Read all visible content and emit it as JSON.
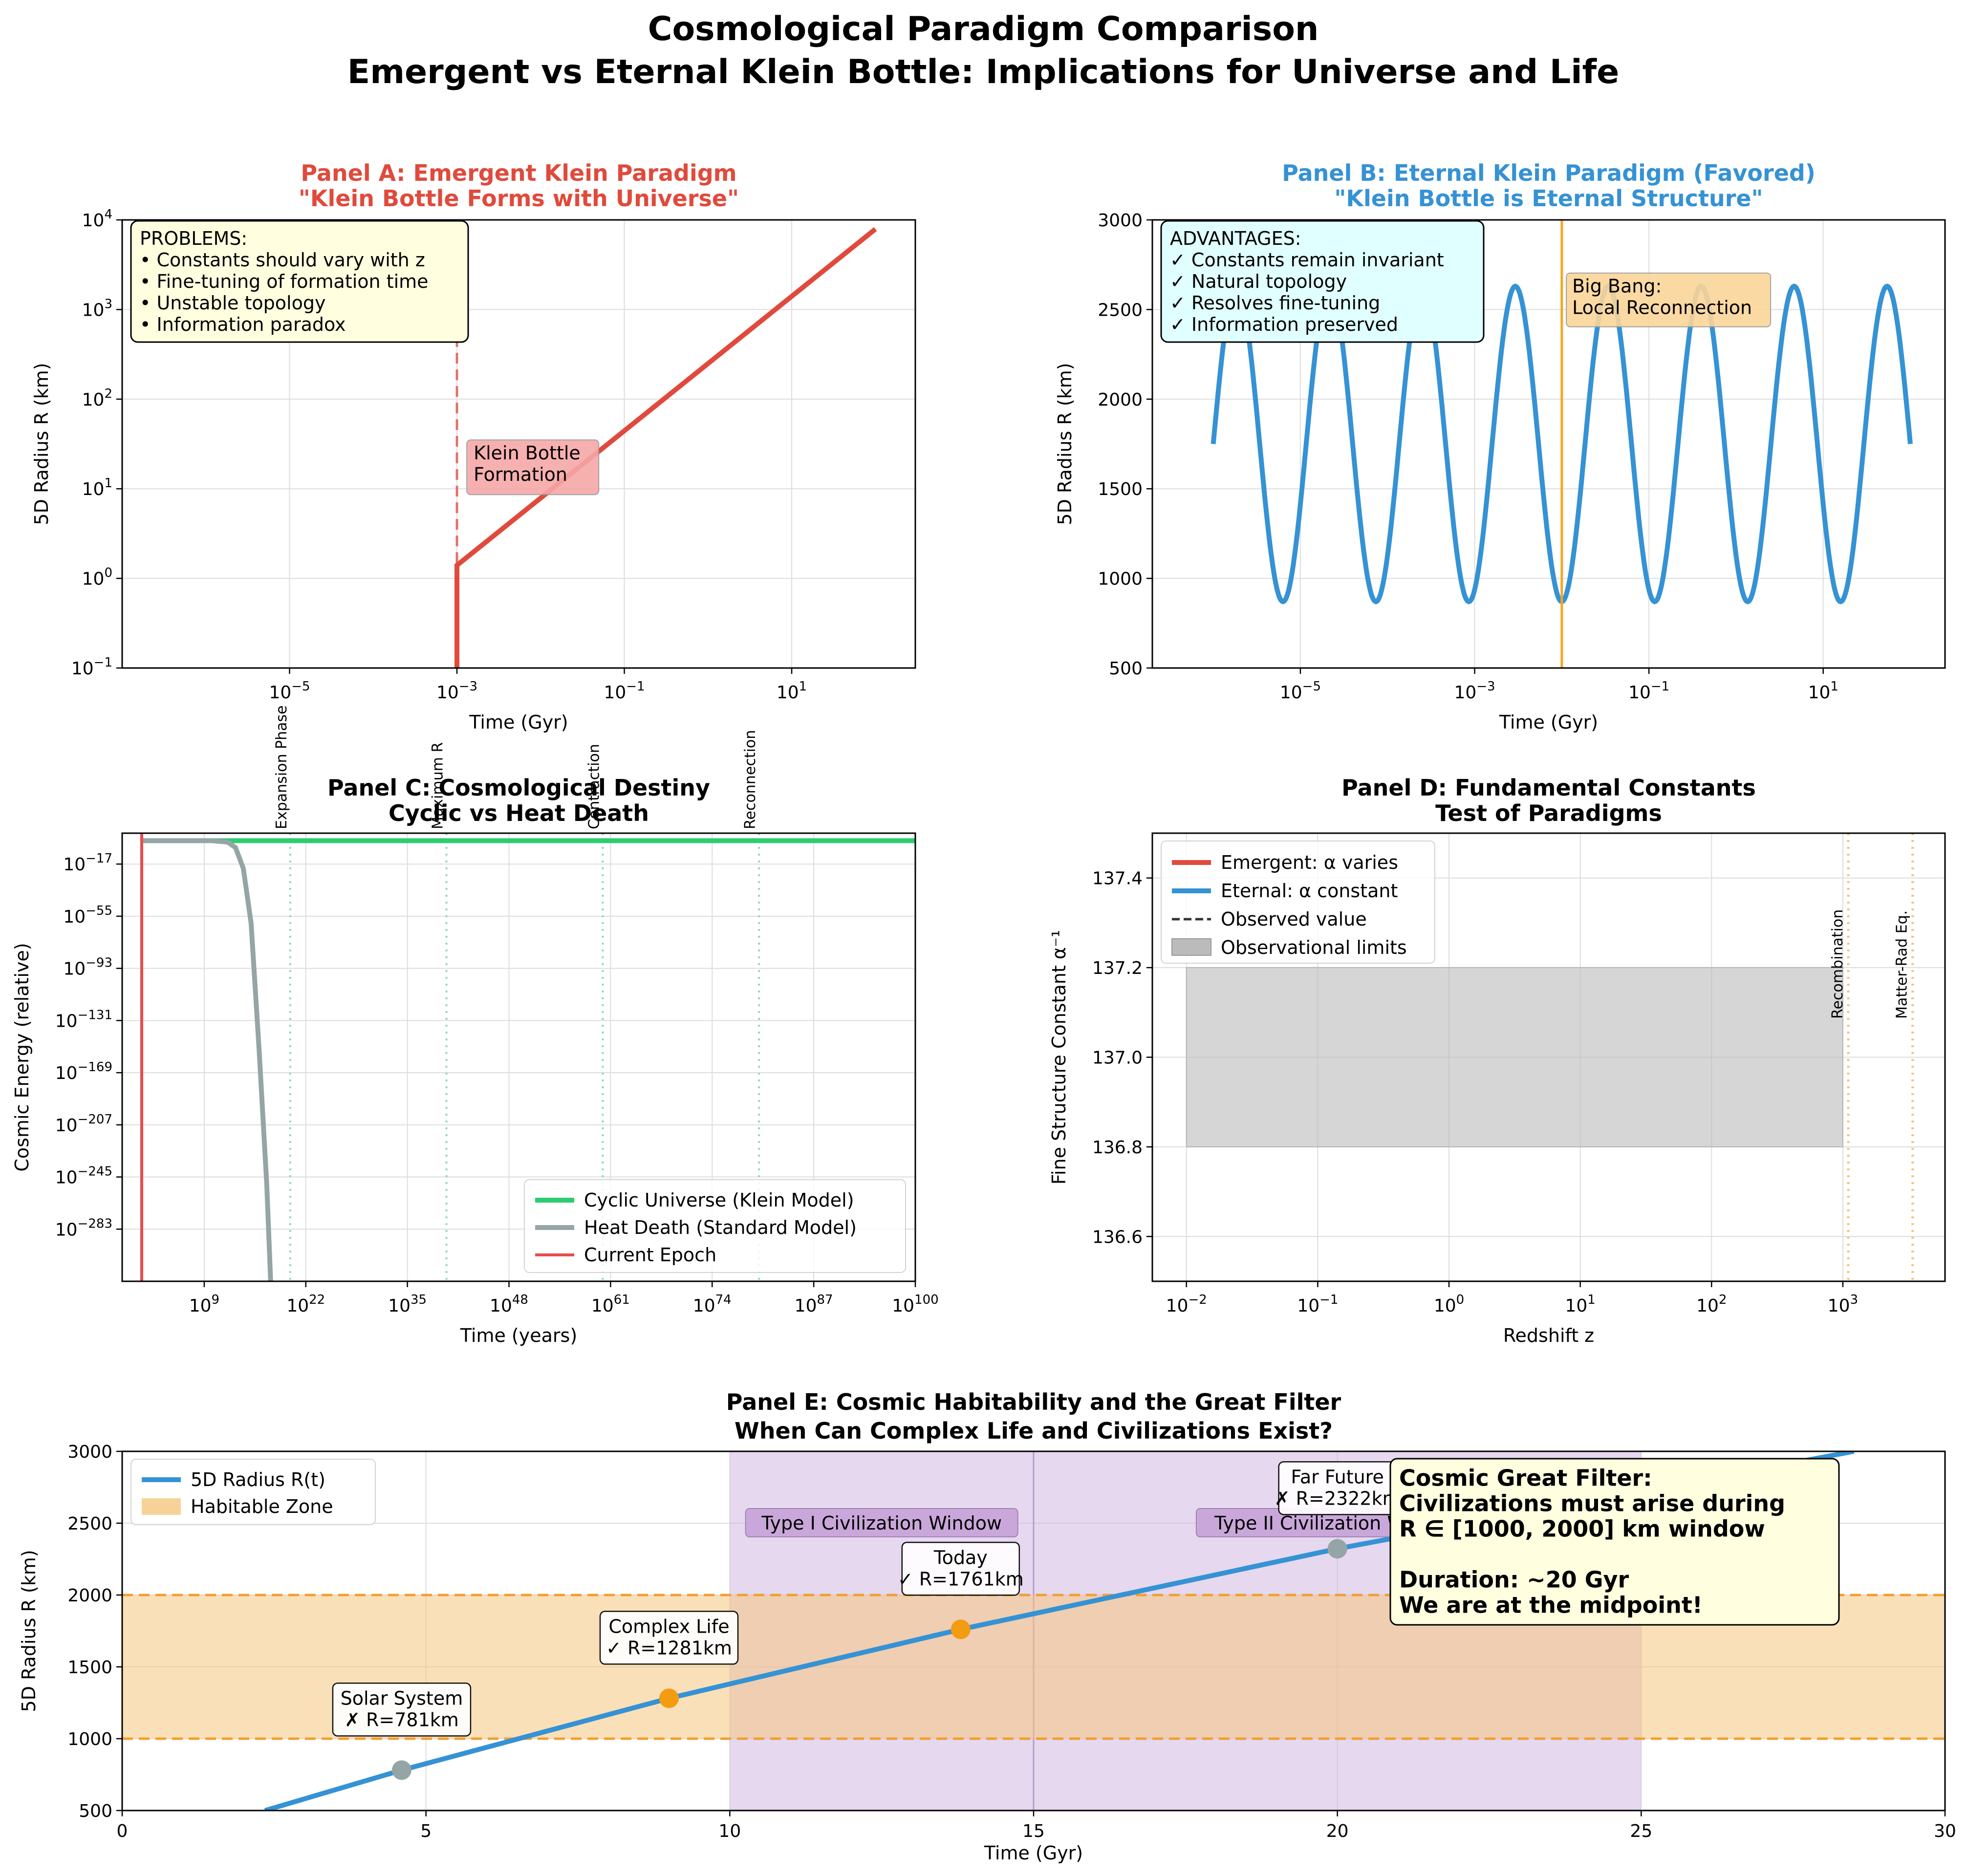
{
  "figure": {
    "title_line1": "Cosmological Paradigm Comparison",
    "title_line2": "Emergent vs Eternal Klein Bottle: Implications for Universe and Life"
  },
  "chart_data": [
    {
      "id": "A",
      "type": "line",
      "title_line1": "Panel A: Emergent Klein Paradigm",
      "title_line2": "\"Klein Bottle Forms with Universe\"",
      "title_color": "#e04a3c",
      "xlabel": "Time (Gyr)",
      "ylabel": "5D Radius R (km)",
      "xscale": "log",
      "yscale": "log",
      "xlim": [
        1e-07,
        300
      ],
      "ylim": [
        0.1,
        10000
      ],
      "xticks": [
        {
          "v": 1e-05,
          "b": "10",
          "e": "−5"
        },
        {
          "v": 0.001,
          "b": "10",
          "e": "−3"
        },
        {
          "v": 0.1,
          "b": "10",
          "e": "−1"
        },
        {
          "v": 10,
          "b": "10",
          "e": "1"
        }
      ],
      "yticks": [
        {
          "v": 0.1,
          "b": "10",
          "e": "−1"
        },
        {
          "v": 1,
          "b": "10",
          "e": "0"
        },
        {
          "v": 10,
          "b": "10",
          "e": "1"
        },
        {
          "v": 100,
          "b": "10",
          "e": "2"
        },
        {
          "v": 1000,
          "b": "10",
          "e": "3"
        },
        {
          "v": 10000,
          "b": "10",
          "e": "4"
        }
      ],
      "grid": true,
      "series": [
        {
          "color": "#e04a3c",
          "points": [
            [
              0.001,
              0.1
            ],
            [
              0.001,
              1.4
            ],
            [
              100,
              7900
            ]
          ]
        }
      ],
      "vline": {
        "x": 0.001,
        "color": "#e04a3c",
        "style": "dashed"
      },
      "annotations": [
        {
          "lines": [
            "Klein Bottle",
            "Formation"
          ],
          "x": 0.0015,
          "y": 10,
          "box": "#f6a8a8"
        }
      ],
      "textbox": {
        "position": "top-left",
        "bg": "#ffffe0",
        "lines": [
          "PROBLEMS:",
          "• Constants should vary with z",
          "• Fine-tuning of formation time",
          "• Unstable topology",
          "• Information paradox"
        ]
      }
    },
    {
      "id": "B",
      "type": "line",
      "title_line1": "Panel B: Eternal Klein Paradigm (Favored)",
      "title_line2": "\"Klein Bottle is Eternal Structure\"",
      "title_color": "#3592d4",
      "xlabel": "Time (Gyr)",
      "ylabel": "5D Radius R (km)",
      "xscale": "log",
      "yscale": "linear",
      "xlim": [
        2e-07,
        250
      ],
      "ylim": [
        500,
        3000
      ],
      "xticks": [
        {
          "v": 1e-05,
          "b": "10",
          "e": "−5"
        },
        {
          "v": 0.001,
          "b": "10",
          "e": "−3"
        },
        {
          "v": 0.1,
          "b": "10",
          "e": "−1"
        },
        {
          "v": 10,
          "b": "10",
          "e": "1"
        }
      ],
      "yticks": [
        {
          "v": 500,
          "t": "500"
        },
        {
          "v": 1000,
          "t": "1000"
        },
        {
          "v": 1500,
          "t": "1500"
        },
        {
          "v": 2000,
          "t": "2000"
        },
        {
          "v": 2500,
          "t": "2500"
        },
        {
          "v": 3000,
          "t": "3000"
        }
      ],
      "grid": true,
      "oscillation": {
        "color": "#3592d4",
        "x_from": 1e-06,
        "x_to": 100,
        "center": 1750,
        "amplitude": 880,
        "cycles": 7.5
      },
      "vline": {
        "x": 0.01,
        "color": "#f5a623",
        "style": "solid"
      },
      "annotations": [
        {
          "lines": [
            "Big Bang:",
            "Local Reconnection"
          ],
          "x": 0.0125,
          "y": 2480,
          "box": "#fbd59a"
        }
      ],
      "textbox": {
        "position": "top-left",
        "bg": "#e0ffff",
        "lines": [
          "ADVANTAGES:",
          "✓ Constants remain invariant",
          "✓ Natural topology",
          "✓ Resolves fine-tuning",
          "✓ Information preserved"
        ]
      }
    },
    {
      "id": "C",
      "type": "line",
      "title_line1": "Panel C: Cosmological Destiny",
      "title_line2": "Cyclic vs Heat Death",
      "xlabel": "Time (years)",
      "ylabel": "Cosmic Energy (relative)",
      "xscale": "log",
      "yscale": "log",
      "x_log_range": [
        -1.5,
        100
      ],
      "y_log_range": [
        -321,
        5.5
      ],
      "xticks": [
        {
          "v": 9,
          "b": "10",
          "e": "9"
        },
        {
          "v": 22,
          "b": "10",
          "e": "22"
        },
        {
          "v": 35,
          "b": "10",
          "e": "35"
        },
        {
          "v": 48,
          "b": "10",
          "e": "48"
        },
        {
          "v": 61,
          "b": "10",
          "e": "61"
        },
        {
          "v": 74,
          "b": "10",
          "e": "74"
        },
        {
          "v": 87,
          "b": "10",
          "e": "87"
        },
        {
          "v": 100,
          "b": "10",
          "e": "100"
        }
      ],
      "yticks": [
        {
          "v": -17,
          "b": "10",
          "e": "−17"
        },
        {
          "v": -55,
          "b": "10",
          "e": "−55"
        },
        {
          "v": -93,
          "b": "10",
          "e": "−93"
        },
        {
          "v": -131,
          "b": "10",
          "e": "−131"
        },
        {
          "v": -169,
          "b": "10",
          "e": "−169"
        },
        {
          "v": -207,
          "b": "10",
          "e": "−207"
        },
        {
          "v": -245,
          "b": "10",
          "e": "−245"
        },
        {
          "v": -283,
          "b": "10",
          "e": "−283"
        }
      ],
      "grid": true,
      "series": [
        {
          "name": "Cyclic Universe (Klein Model)",
          "color": "#2ecc71",
          "log_points": [
            [
              1,
              0
            ],
            [
              100,
              0
            ]
          ]
        },
        {
          "name": "Heat Death (Standard Model)",
          "color": "#95a5a6",
          "log_points": [
            [
              1,
              0
            ],
            [
              10,
              0
            ],
            [
              12,
              -1
            ],
            [
              13,
              -5
            ],
            [
              14,
              -20
            ],
            [
              15,
              -60
            ],
            [
              16,
              -150
            ],
            [
              17,
              -250
            ],
            [
              17.5,
              -321
            ]
          ]
        }
      ],
      "current_epoch": {
        "name": "Current Epoch",
        "log_x": 1.0,
        "color": "#e84c4c"
      },
      "phase_lines": [
        {
          "log_x": 20,
          "label": "Expansion Phase"
        },
        {
          "log_x": 40,
          "label": "Maximum R"
        },
        {
          "log_x": 60,
          "label": "Contraction"
        },
        {
          "log_x": 80,
          "label": "Reconnection"
        }
      ],
      "legend": {
        "position": "lower-right"
      }
    },
    {
      "id": "D",
      "type": "line",
      "title_line1": "Panel D: Fundamental Constants",
      "title_line2": "Test of Paradigms",
      "xlabel": "Redshift z",
      "ylabel": "Fine Structure Constant α⁻¹",
      "xscale": "log",
      "yscale": "linear",
      "xlim": [
        0.0055,
        6000
      ],
      "ylim": [
        136.5,
        137.5
      ],
      "xticks": [
        {
          "v": 0.01,
          "b": "10",
          "e": "−2"
        },
        {
          "v": 0.1,
          "b": "10",
          "e": "−1"
        },
        {
          "v": 1,
          "b": "10",
          "e": "0"
        },
        {
          "v": 10,
          "b": "10",
          "e": "1"
        },
        {
          "v": 100,
          "b": "10",
          "e": "2"
        },
        {
          "v": 1000,
          "b": "10",
          "e": "3"
        }
      ],
      "yticks": [
        {
          "v": 136.6,
          "t": "136.6"
        },
        {
          "v": 136.8,
          "t": "136.8"
        },
        {
          "v": 137.0,
          "t": "137.0"
        },
        {
          "v": 137.2,
          "t": "137.2"
        },
        {
          "v": 137.4,
          "t": "137.4"
        }
      ],
      "grid": true,
      "band": {
        "name": "Observational limits",
        "x": [
          0.01,
          1000
        ],
        "y": [
          136.8,
          137.2
        ],
        "color": "#bbbbbb"
      },
      "legend_entries": [
        {
          "name": "Emergent: α varies",
          "color": "#e04a3c",
          "style": "solid"
        },
        {
          "name": "Eternal: α constant",
          "color": "#3592d4",
          "style": "solid"
        },
        {
          "name": "Observed value",
          "color": "#333333",
          "style": "dashed"
        },
        {
          "name": "Observational limits",
          "color": "#bbbbbb",
          "style": "patch"
        }
      ],
      "epoch_lines": [
        {
          "x": 1100,
          "label": "Recombination"
        },
        {
          "x": 3400,
          "label": "Matter-Rad Eq."
        }
      ],
      "legend": {
        "position": "upper-left"
      }
    },
    {
      "id": "E",
      "type": "line",
      "title_line1": "Panel E: Cosmic Habitability and the Great Filter",
      "title_line2": "When Can Complex Life and Civilizations Exist?",
      "xlabel": "Time (Gyr)",
      "ylabel": "5D Radius R (km)",
      "xlim": [
        0,
        30
      ],
      "ylim": [
        500,
        3000
      ],
      "xticks": [
        {
          "v": 0,
          "t": "0"
        },
        {
          "v": 5,
          "t": "5"
        },
        {
          "v": 10,
          "t": "10"
        },
        {
          "v": 15,
          "t": "15"
        },
        {
          "v": 20,
          "t": "20"
        },
        {
          "v": 25,
          "t": "25"
        },
        {
          "v": 30,
          "t": "30"
        }
      ],
      "yticks": [
        {
          "v": 500,
          "t": "500"
        },
        {
          "v": 1000,
          "t": "1000"
        },
        {
          "v": 1500,
          "t": "1500"
        },
        {
          "v": 2000,
          "t": "2000"
        },
        {
          "v": 2500,
          "t": "2500"
        },
        {
          "v": 3000,
          "t": "3000"
        }
      ],
      "grid": true,
      "series": [
        {
          "name": "5D Radius R(t)",
          "color": "#3592d4",
          "points": [
            [
              2.35,
              500
            ],
            [
              4.6,
              781
            ],
            [
              9,
              1281
            ],
            [
              13.8,
              1761
            ],
            [
              20,
              2322
            ],
            [
              24,
              2640
            ],
            [
              28.5,
              3000
            ]
          ]
        }
      ],
      "habitable_zone": {
        "name": "Habitable Zone",
        "y": [
          1000,
          2000
        ],
        "color": "#f5c77e"
      },
      "civ_band": {
        "x": [
          10,
          25
        ],
        "color": "#cdb2e0"
      },
      "civ_divider": 15,
      "civ_labels": [
        {
          "text": "Type I Civilization Window",
          "x": 12.5,
          "y": 2500
        },
        {
          "text": "Type II Civilization Window",
          "x": 20,
          "y": 2500
        }
      ],
      "markers": [
        {
          "x": 4.6,
          "y": 781,
          "color": "#95a5a6",
          "lines": [
            "Solar System",
            "✗ R=781km"
          ]
        },
        {
          "x": 9,
          "y": 1281,
          "color": "#f39c12",
          "lines": [
            "Complex Life",
            "✓ R=1281km"
          ]
        },
        {
          "x": 13.8,
          "y": 1761,
          "color": "#f39c12",
          "lines": [
            "Today",
            "✓ R=1761km"
          ]
        },
        {
          "x": 20,
          "y": 2322,
          "color": "#95a5a6",
          "lines": [
            "Far Future",
            "✗ R=2322km"
          ]
        }
      ],
      "filter_box": {
        "lines": [
          "Cosmic Great Filter:",
          "Civilizations must arise during",
          "R ∈ [1000, 2000] km window",
          "",
          "Duration: ~20 Gyr",
          "We are at the midpoint!"
        ]
      },
      "legend": {
        "position": "upper-left"
      }
    }
  ]
}
